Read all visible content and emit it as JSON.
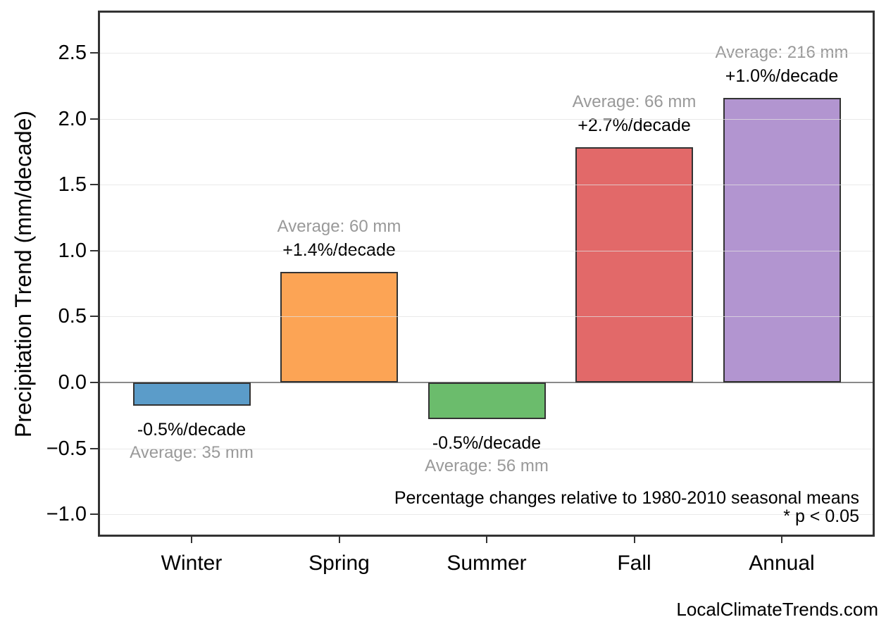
{
  "page": {
    "watermark": "LocalClimateTrends.com"
  },
  "chart_data": {
    "type": "bar",
    "title": "",
    "ylabel": "Precipitation Trend (mm/decade)",
    "xlabel": "",
    "categories": [
      "Winter",
      "Spring",
      "Summer",
      "Fall",
      "Annual"
    ],
    "values": [
      -0.175,
      0.84,
      -0.28,
      1.782,
      2.16
    ],
    "ylim": [
      -1.19,
      2.82
    ],
    "grid": true,
    "legend": "none",
    "y_ticks": [
      2.5,
      2.0,
      1.5,
      1.0,
      0.5,
      0.0,
      -0.5,
      -1.0
    ],
    "y_tick_labels": [
      "2.5",
      "2.0",
      "1.5",
      "1.0",
      "0.5",
      "0.0",
      "−0.5",
      "−1.0"
    ],
    "bars": [
      {
        "category": "Winter",
        "value": -0.175,
        "pct_label": "-0.5%/decade",
        "avg_label": "Average: 35 mm",
        "color": "#5B9CC9"
      },
      {
        "category": "Spring",
        "value": 0.84,
        "pct_label": "+1.4%/decade",
        "avg_label": "Average: 60 mm",
        "color": "#FCA455"
      },
      {
        "category": "Summer",
        "value": -0.28,
        "pct_label": "-0.5%/decade",
        "avg_label": "Average: 56 mm",
        "color": "#6BBC6C"
      },
      {
        "category": "Fall",
        "value": 1.782,
        "pct_label": "+2.7%/decade",
        "avg_label": "Average: 66 mm",
        "color": "#E26969"
      },
      {
        "category": "Annual",
        "value": 2.16,
        "pct_label": "+1.0%/decade",
        "avg_label": "Average: 216 mm",
        "color": "#B295D0"
      }
    ],
    "footnotes": [
      "Percentage changes relative to 1980-2010 seasonal means",
      "* p < 0.05"
    ],
    "colors": {
      "bar_edge": "#333333",
      "zero_line": "#8A8A8A",
      "grid_line": "rgba(225,225,225,0.75)",
      "avg_text": "#999999",
      "pct_text": "#000000",
      "axis": "#333333"
    }
  }
}
